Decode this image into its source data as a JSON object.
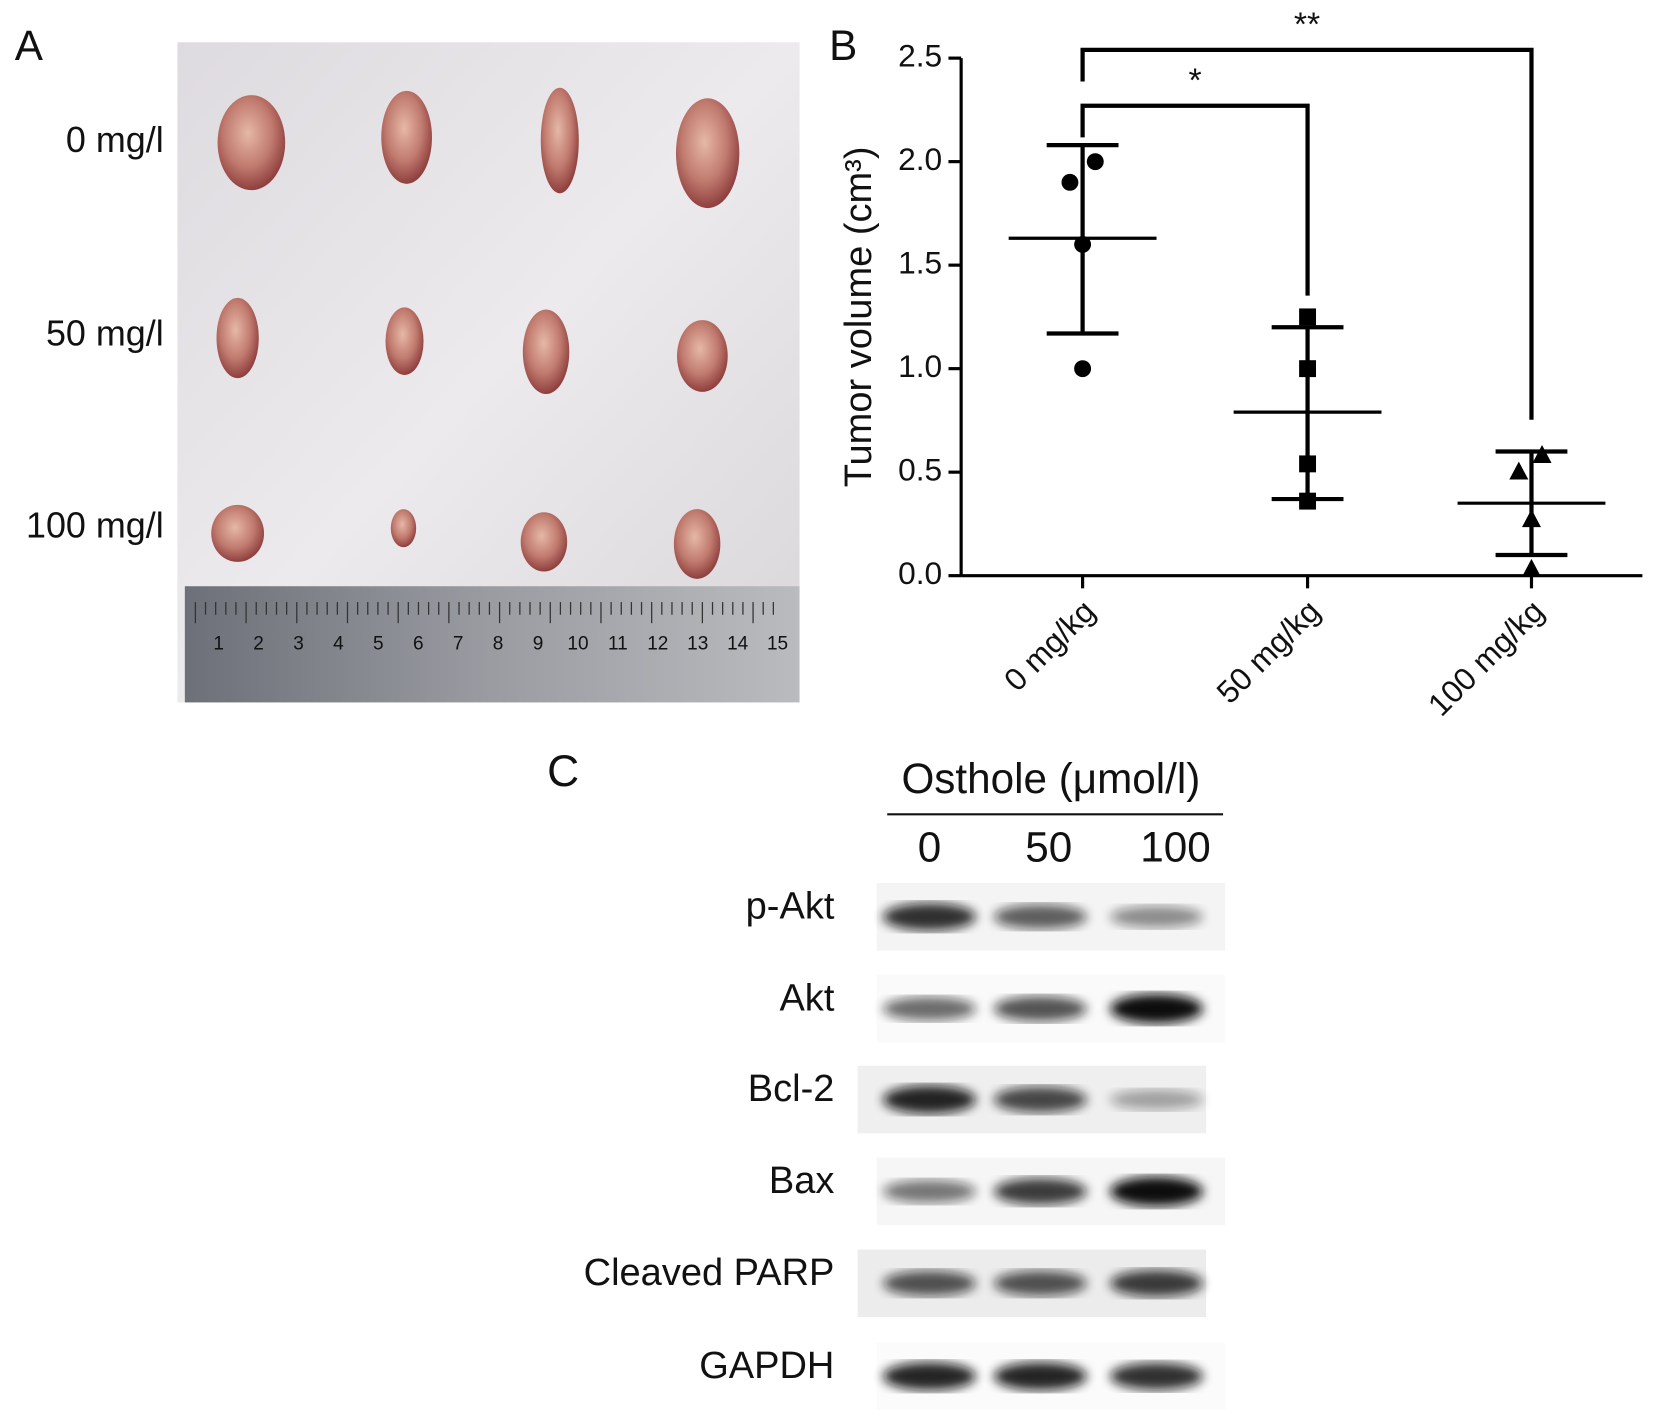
{
  "panel_a": {
    "label": "A",
    "row_labels": [
      "0 mg/l",
      "50 mg/l",
      "100 mg/l"
    ],
    "ruler_labels": [
      "1",
      "2",
      "3",
      "4",
      "5",
      "6",
      "7",
      "8",
      "9",
      "10",
      "11",
      "12",
      "13",
      "14",
      "15"
    ]
  },
  "chart_data": {
    "type": "dot-plot",
    "panel_label": "B",
    "y_label": "Tumor volume (cm³)",
    "categories": [
      "0 mg/kg",
      "50 mg/kg",
      "100 mg/kg"
    ],
    "groups": [
      {
        "marker": "circle",
        "points": [
          2.0,
          1.9,
          1.6,
          1.0
        ],
        "mean": 1.63,
        "error_low": 1.17,
        "error_high": 2.08
      },
      {
        "marker": "square",
        "points": [
          1.25,
          1.0,
          0.54,
          0.36
        ],
        "mean": 0.79,
        "error_low": 0.37,
        "error_high": 1.2
      },
      {
        "marker": "triangle",
        "points": [
          0.58,
          0.5,
          0.27,
          0.03
        ],
        "mean": 0.35,
        "error_low": 0.1,
        "error_high": 0.6
      }
    ],
    "ylim": [
      0,
      2.5
    ],
    "yticks": [
      {
        "value": 0,
        "label": "0.0"
      },
      {
        "value": 0.5,
        "label": "0.5"
      },
      {
        "value": 1,
        "label": "1.0"
      },
      {
        "value": 1.5,
        "label": "1.5"
      },
      {
        "value": 2,
        "label": "2.0"
      },
      {
        "value": 2.5,
        "label": "2.5"
      }
    ],
    "annotations": [
      {
        "text": "*",
        "from": 0,
        "to": 1,
        "y": 2.27
      },
      {
        "text": "**",
        "from": 0,
        "to": 2,
        "y": 2.54
      }
    ],
    "color": "#000000"
  },
  "panel_c": {
    "label": "C",
    "title": "Osthole (μmol/l)",
    "lanes": [
      "0",
      "50",
      "100"
    ],
    "rows": [
      "p-Akt",
      "Akt",
      "Bcl-2",
      "Bax",
      "Cleaved PARP",
      "GAPDH"
    ]
  }
}
